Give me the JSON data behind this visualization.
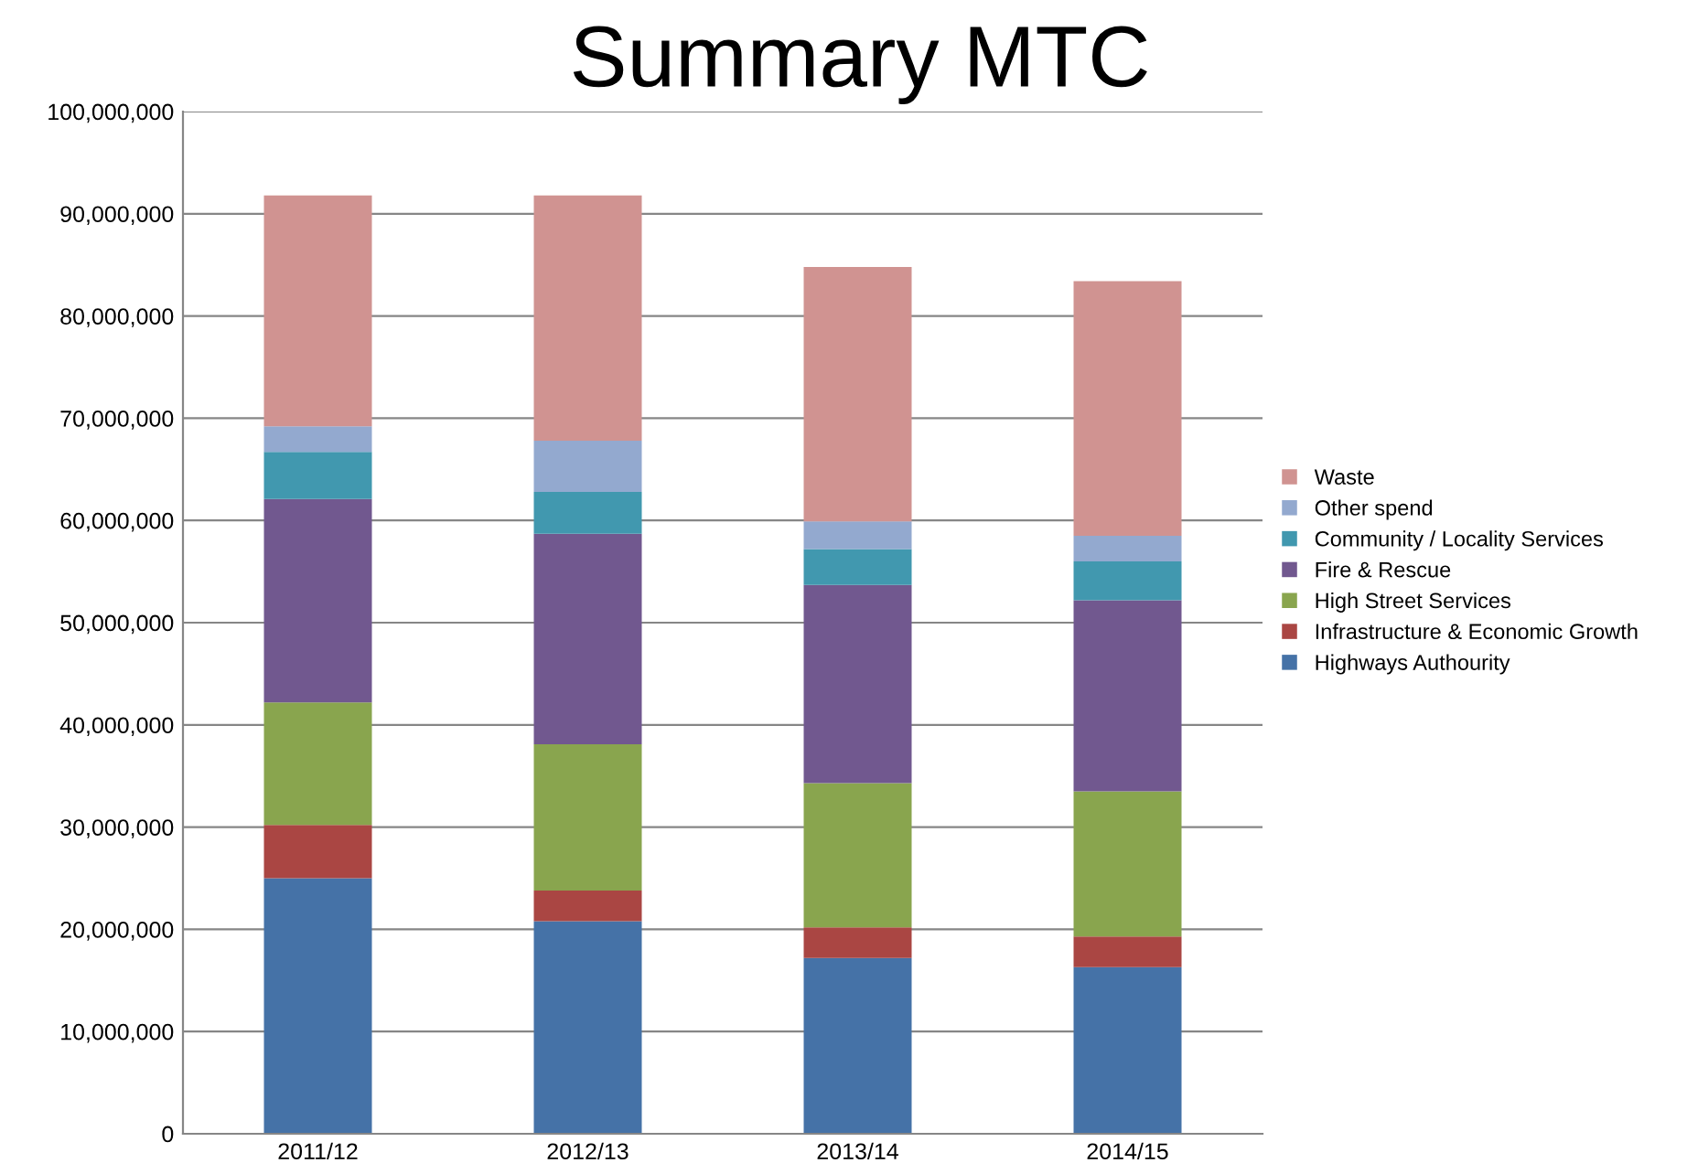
{
  "chart_data": {
    "type": "bar",
    "title": "Summary MTC",
    "stacked": true,
    "categories": [
      "2011/12",
      "2012/13",
      "2013/14",
      "2014/15"
    ],
    "series": [
      {
        "name": "Highways Authourity",
        "color": "#4572a7",
        "values": [
          25000000,
          20800000,
          17200000,
          16300000
        ]
      },
      {
        "name": "Infrastructure & Economic Growth",
        "color": "#aa4643",
        "values": [
          5200000,
          3000000,
          3000000,
          3000000
        ]
      },
      {
        "name": "High Street Services",
        "color": "#89a54e",
        "values": [
          12000000,
          14300000,
          14100000,
          14200000
        ]
      },
      {
        "name": "Fire & Rescue",
        "color": "#71588f",
        "values": [
          19900000,
          20600000,
          19400000,
          18700000
        ]
      },
      {
        "name": "Community / Locality Services",
        "color": "#4198af",
        "values": [
          4600000,
          4100000,
          3500000,
          3800000
        ]
      },
      {
        "name": "Other spend",
        "color": "#93a9cf",
        "values": [
          2500000,
          5000000,
          2700000,
          2500000
        ]
      },
      {
        "name": "Waste",
        "color": "#d09391",
        "values": [
          22600000,
          24000000,
          24900000,
          24900000
        ]
      }
    ],
    "ylim": [
      0,
      100000000
    ],
    "yticks": [
      {
        "value": 0,
        "label": "0"
      },
      {
        "value": 10000000,
        "label": "10,000,000"
      },
      {
        "value": 20000000,
        "label": "20,000,000"
      },
      {
        "value": 30000000,
        "label": "30,000,000"
      },
      {
        "value": 40000000,
        "label": "40,000,000"
      },
      {
        "value": 50000000,
        "label": "50,000,000"
      },
      {
        "value": 60000000,
        "label": "60,000,000"
      },
      {
        "value": 70000000,
        "label": "70,000,000"
      },
      {
        "value": 80000000,
        "label": "80,000,000"
      },
      {
        "value": 90000000,
        "label": "90,000,000"
      },
      {
        "value": 100000000,
        "label": "100,000,000"
      }
    ],
    "grid": "y",
    "legend": "right"
  }
}
